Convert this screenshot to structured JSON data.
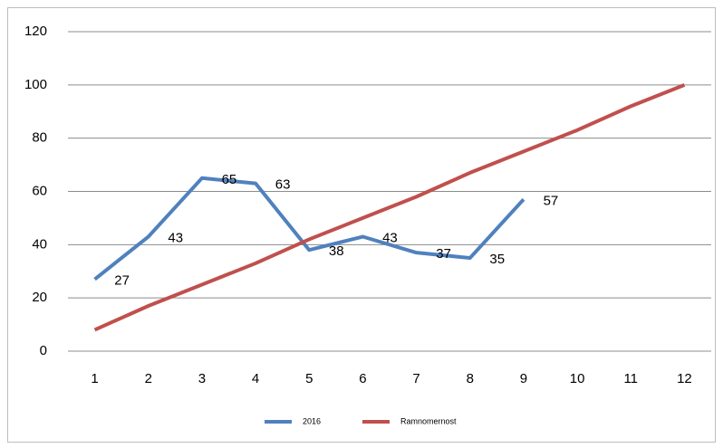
{
  "chart_data": {
    "type": "line",
    "categories": [
      "1",
      "2",
      "3",
      "4",
      "5",
      "6",
      "7",
      "8",
      "9",
      "10",
      "11",
      "12"
    ],
    "series": [
      {
        "name": "2016",
        "color": "#4f81bd",
        "values": [
          27,
          43,
          65,
          63,
          38,
          43,
          37,
          35,
          57,
          null,
          null,
          null
        ],
        "data_labels": true
      },
      {
        "name": "Ramnomernost",
        "color": "#c0504d",
        "values": [
          8,
          17,
          25,
          33,
          42,
          50,
          58,
          67,
          75,
          83,
          92,
          100
        ],
        "data_labels": false
      }
    ],
    "ylim": [
      0,
      120
    ],
    "yticks": [
      0,
      20,
      40,
      60,
      80,
      100,
      120
    ],
    "grid": true,
    "legend": "bottom"
  }
}
